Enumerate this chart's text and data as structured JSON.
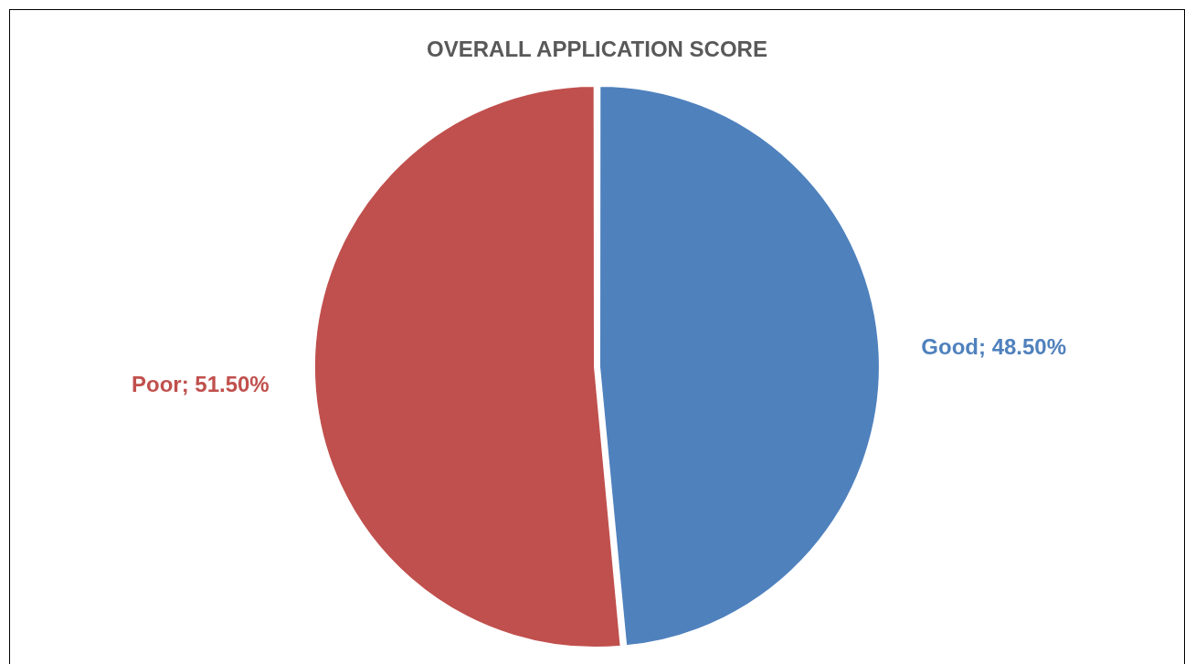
{
  "chart_data": {
    "type": "pie",
    "title": "OVERALL APPLICATION SCORE",
    "categories": [
      "Good",
      "Poor"
    ],
    "values": [
      48.5,
      51.5
    ],
    "colors": [
      "#4f81bd",
      "#c0504d"
    ],
    "value_labels": [
      "48.50%",
      "51.50%"
    ],
    "legend": false
  }
}
